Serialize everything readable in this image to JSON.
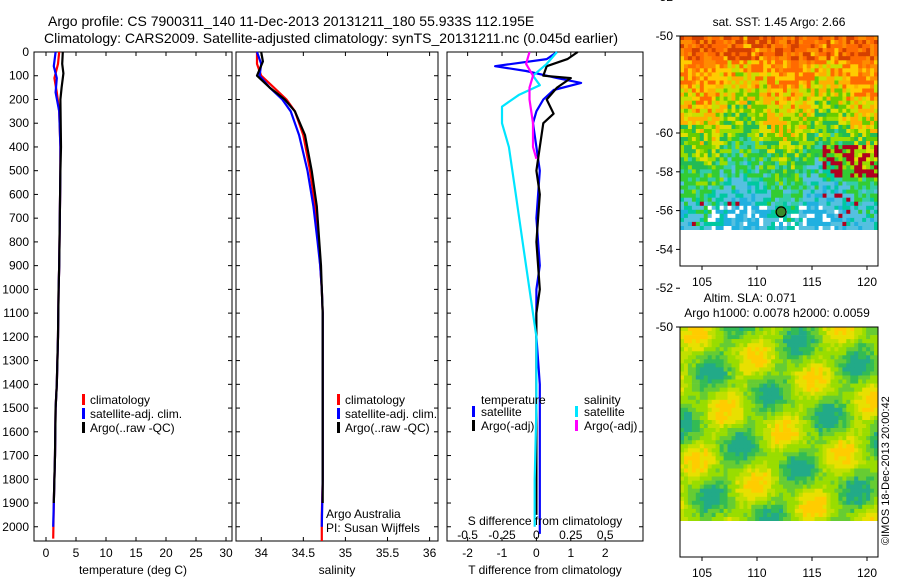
{
  "header": {
    "line1": "Argo profile: CS 7900311_140 11-Dec-2013 20131211_180 55.933S 112.195E",
    "line2": "Climatology: CARS2009. Satellite-adjusted climatology: synTS_20131211.nc (0.045d earlier)"
  },
  "colors": {
    "climatology": "#ff0000",
    "satellite": "#0000ff",
    "argo": "#000000",
    "s_sat": "#00e5ff",
    "s_argo": "#ff00ff"
  },
  "chart_data": [
    {
      "type": "line",
      "name": "temperature-profile",
      "xlabel": "temperature (deg C)",
      "xlim": [
        -2,
        31
      ],
      "xticks": [
        "0",
        "5",
        "10",
        "15",
        "20",
        "25",
        "30"
      ],
      "xtick_values": [
        0,
        5,
        10,
        15,
        20,
        25,
        30
      ],
      "ylim": [
        2060,
        0
      ],
      "yticks": [
        "0",
        "100",
        "200",
        "300",
        "400",
        "500",
        "600",
        "700",
        "800",
        "900",
        "1000",
        "1100",
        "1200",
        "1300",
        "1400",
        "1500",
        "1600",
        "1700",
        "1800",
        "1900",
        "2000"
      ],
      "ytick_values": [
        0,
        100,
        200,
        300,
        400,
        500,
        600,
        700,
        800,
        900,
        1000,
        1100,
        1200,
        1300,
        1400,
        1500,
        1600,
        1700,
        1800,
        1900,
        2000
      ],
      "legend": [
        "climatology",
        "satellite-adj. clim.",
        "Argo(..raw -QC)"
      ],
      "series": [
        {
          "name": "climatology",
          "color": "#ff0000",
          "x": [
            2.2,
            2.0,
            1.4,
            1.8,
            2.2,
            2.4,
            2.4,
            2.3,
            2.2,
            2.1,
            2.0,
            1.9,
            1.8,
            1.6,
            1.5,
            1.3,
            1.2
          ],
          "y": [
            0,
            50,
            110,
            170,
            250,
            400,
            500,
            700,
            900,
            1000,
            1200,
            1300,
            1400,
            1500,
            1700,
            1900,
            2050
          ]
        },
        {
          "name": "satellite-adj. clim.",
          "color": "#0000ff",
          "x": [
            1.6,
            1.3,
            1.8,
            1.6,
            2.2,
            2.4,
            2.4,
            2.3,
            2.2,
            2.1,
            2.0,
            1.9,
            1.8,
            1.6,
            1.5,
            1.3,
            1.2
          ],
          "y": [
            0,
            60,
            110,
            170,
            250,
            400,
            500,
            700,
            900,
            1000,
            1200,
            1300,
            1400,
            1500,
            1700,
            1900,
            2000
          ]
        },
        {
          "name": "Argo(..raw -QC)",
          "color": "#000000",
          "x": [
            2.8,
            2.7,
            2.9,
            2.6,
            2.4,
            2.5,
            2.4,
            2.3,
            2.2,
            2.1,
            2.0,
            1.9,
            1.8,
            1.6,
            1.5,
            1.3
          ],
          "y": [
            0,
            50,
            90,
            150,
            200,
            400,
            500,
            700,
            900,
            1000,
            1200,
            1300,
            1400,
            1500,
            1700,
            1900
          ]
        }
      ]
    },
    {
      "type": "line",
      "name": "salinity-profile",
      "xlabel": "salinity",
      "xlim": [
        33.7,
        36.1
      ],
      "xticks": [
        "34",
        "34.5",
        "35",
        "35.5",
        "36"
      ],
      "xtick_values": [
        34,
        34.5,
        35,
        35.5,
        36
      ],
      "ylim": [
        2060,
        0
      ],
      "legend": [
        "climatology",
        "satellite-adj. clim.",
        "Argo(..raw -QC)"
      ],
      "annotations": [
        "Argo Australia",
        "PI: Susan Wijffels"
      ],
      "series": [
        {
          "name": "climatology",
          "color": "#ff0000",
          "x": [
            33.95,
            33.95,
            34.0,
            34.15,
            34.3,
            34.4,
            34.5,
            34.58,
            34.64,
            34.68,
            34.7,
            34.72,
            34.73,
            34.73,
            34.73,
            34.73,
            34.72,
            34.72
          ],
          "y": [
            0,
            50,
            100,
            150,
            200,
            250,
            350,
            500,
            650,
            800,
            900,
            1000,
            1100,
            1200,
            1500,
            1800,
            1950,
            2060
          ]
        },
        {
          "name": "satellite-adj. clim.",
          "color": "#0000ff",
          "x": [
            33.95,
            34.0,
            33.98,
            34.1,
            34.25,
            34.35,
            34.45,
            34.55,
            34.62,
            34.67,
            34.7,
            34.72,
            34.73,
            34.73,
            34.73,
            34.73,
            34.72
          ],
          "y": [
            0,
            50,
            100,
            150,
            200,
            250,
            350,
            500,
            650,
            800,
            900,
            1000,
            1100,
            1200,
            1500,
            1800,
            2000
          ]
        },
        {
          "name": "Argo(..raw -QC)",
          "color": "#000000",
          "x": [
            34.0,
            34.02,
            33.95,
            34.1,
            34.28,
            34.4,
            34.52,
            34.6,
            34.66,
            34.69,
            34.71,
            34.72,
            34.73,
            34.73,
            34.73,
            34.73
          ],
          "y": [
            0,
            40,
            100,
            150,
            200,
            250,
            350,
            500,
            650,
            800,
            900,
            1000,
            1100,
            1200,
            1500,
            1900
          ]
        }
      ]
    },
    {
      "type": "line",
      "name": "difference-profile",
      "xlabel": "T difference from climatology",
      "xlabel_top": "S difference from climatology",
      "xlim": [
        -2.6,
        3.1
      ],
      "xticks": [
        "-2",
        "-1",
        "0",
        "1",
        "2"
      ],
      "xtick_values": [
        -2,
        -1,
        0,
        1,
        2
      ],
      "top_ticks": [
        "-0.5",
        "-0.25",
        "0",
        "0.25",
        "0.5"
      ],
      "top_tick_values": [
        -2,
        -1,
        0,
        1,
        2
      ],
      "ylim": [
        2060,
        0
      ],
      "legend": [
        "temperature",
        "satellite",
        "Argo(-adj)",
        "salinity",
        "satellite",
        "Argo(-adj)"
      ],
      "series": [
        {
          "name": "T satellite",
          "color": "#0000ff",
          "x": [
            0.6,
            0.3,
            -1.2,
            -0.3,
            0.3,
            0.6,
            1.3,
            0.5,
            0.2,
            0.0,
            -0.1,
            0.0,
            0.1,
            0.0,
            0.1,
            0.0,
            0.0,
            0.1,
            0.1,
            0.1,
            0.1,
            0.1
          ],
          "y": [
            0,
            30,
            60,
            80,
            100,
            110,
            130,
            160,
            200,
            250,
            300,
            400,
            500,
            700,
            900,
            1000,
            1200,
            1400,
            1600,
            1800,
            1950,
            2030
          ]
        },
        {
          "name": "T Argo(-adj)",
          "color": "#000000",
          "x": [
            1.2,
            0.9,
            0.3,
            0.2,
            1.0,
            0.6,
            0.3,
            0.5,
            0.2,
            0.1,
            0.0,
            0.1,
            0.0,
            0.1,
            0.0,
            0.0,
            0.0,
            0.0,
            0.0,
            0.0
          ],
          "y": [
            0,
            30,
            60,
            100,
            110,
            150,
            200,
            260,
            300,
            400,
            500,
            600,
            800,
            1000,
            1100,
            1200,
            1400,
            1600,
            1800,
            1950
          ]
        },
        {
          "name": "S satellite",
          "color": "#00e5ff",
          "x": [
            0.6,
            0.3,
            -0.1,
            0.1,
            -0.5,
            -1.0,
            -1.0,
            -0.8,
            -0.6,
            -0.4,
            -0.2,
            0.0,
            0.0,
            -0.05,
            -0.05
          ],
          "y": [
            0,
            50,
            100,
            140,
            180,
            230,
            300,
            400,
            600,
            800,
            1000,
            1200,
            1500,
            1800,
            2000
          ]
        },
        {
          "name": "S Argo(-adj)",
          "color": "#ff00ff",
          "x": [
            -0.2,
            -0.3,
            -0.1,
            -0.2,
            -0.2,
            -0.1,
            -0.1,
            0.0
          ],
          "y": [
            0,
            50,
            100,
            150,
            200,
            300,
            400,
            450
          ]
        }
      ]
    },
    {
      "type": "heatmap",
      "name": "sst-map",
      "title": "sat. SST: 1.45 Argo: 2.66",
      "xticks": [
        "105",
        "110",
        "115",
        "120"
      ],
      "xtick_values": [
        105,
        110,
        115,
        120
      ],
      "yticks": [
        "-50",
        "-52",
        "-54",
        "-56",
        "-58",
        "-60"
      ],
      "ytick_values": [
        -50,
        -52,
        -54,
        -56,
        -58,
        -60
      ],
      "xlim": [
        103,
        121
      ],
      "ylim": [
        -62,
        -50
      ],
      "marker": {
        "lon": 112.195,
        "lat": -55.933
      }
    },
    {
      "type": "heatmap",
      "name": "sla-map",
      "title_line1": "Altim. SLA: 0.071",
      "title_line2": "Argo h1000: 0.0078 h2000: 0.0059",
      "xticks": [
        "105",
        "110",
        "115",
        "120"
      ],
      "xtick_values": [
        105,
        110,
        115,
        120
      ],
      "yticks": [
        "-50",
        "-52",
        "-54",
        "-56",
        "-58",
        "-60"
      ],
      "ytick_values": [
        -50,
        -52,
        -54,
        -56,
        -58,
        -60
      ],
      "xlim": [
        103,
        121
      ],
      "ylim": [
        -62,
        -50
      ],
      "marker": {
        "lon": 112.195,
        "lat": -55.933
      },
      "side_label": "©IMOS 18-Dec-2013 20:00:42"
    }
  ]
}
